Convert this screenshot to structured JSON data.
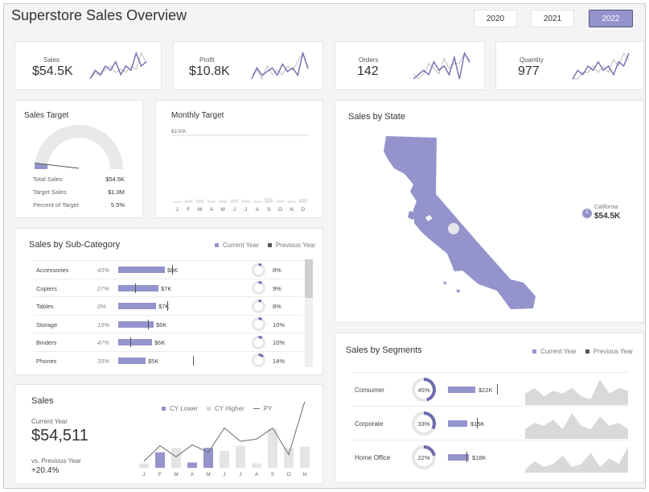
{
  "title": "Superstore Sales Overview",
  "years": [
    {
      "label": "2020",
      "active": false
    },
    {
      "label": "2021",
      "active": false
    },
    {
      "label": "2022",
      "active": true
    }
  ],
  "colors": {
    "accent": "#9493cc",
    "accent_dark": "#6e6cae",
    "light": "#e6e6e9",
    "ghost": "#c7c7cc"
  },
  "kpis": [
    {
      "label": "Sales",
      "value": "$54.5K",
      "cur": [
        3,
        5,
        4,
        6,
        5,
        7,
        4,
        6,
        5,
        9,
        6,
        7
      ],
      "prev": [
        2,
        4,
        3,
        5,
        6,
        4,
        5,
        4,
        6,
        5,
        10,
        7
      ]
    },
    {
      "label": "Profit",
      "value": "$10.8K",
      "cur": [
        3,
        6,
        4,
        5,
        6,
        4,
        7,
        5,
        6,
        4,
        10,
        6
      ],
      "prev": [
        4,
        5,
        3,
        6,
        4,
        5,
        4,
        6,
        5,
        7,
        9,
        5
      ]
    },
    {
      "label": "Orders",
      "value": "142",
      "cur": [
        3,
        4,
        5,
        4,
        7,
        5,
        6,
        4,
        8,
        3,
        9,
        7
      ],
      "prev": [
        4,
        3,
        4,
        6,
        5,
        4,
        7,
        5,
        6,
        6,
        8,
        6
      ]
    },
    {
      "label": "Quantity",
      "value": "977",
      "cur": [
        3,
        5,
        4,
        6,
        5,
        7,
        5,
        6,
        4,
        7,
        6,
        9
      ],
      "prev": [
        4,
        4,
        5,
        5,
        6,
        5,
        6,
        5,
        7,
        6,
        8,
        7
      ]
    }
  ],
  "sales_target": {
    "title": "Sales Target",
    "rows": [
      {
        "label": "Total Sales",
        "value": "$54.5K"
      },
      {
        "label": "Target Sales",
        "value": "$1.0M"
      },
      {
        "label": "Percent of Target",
        "value": "5.5%"
      }
    ],
    "percent": 0.055
  },
  "monthly_target": {
    "title": "Monthly Target",
    "target_label": "$100K",
    "months": [
      "J",
      "F",
      "M",
      "A",
      "M",
      "J",
      "J",
      "A",
      "S",
      "O",
      "N",
      "D"
    ],
    "values": [
      2.5,
      4,
      5,
      3.5,
      4,
      5.5,
      4.5,
      3,
      7,
      4,
      3.5,
      6
    ],
    "target": 100
  },
  "state": {
    "title": "Sales by State",
    "badge": "1",
    "name": "California",
    "value": "$54.5K"
  },
  "subcategory": {
    "title": "Sales by Sub-Category",
    "legend_current": "Current Year",
    "legend_previous": "Previous Year",
    "rows": [
      {
        "name": "Accessories",
        "growth": "43%",
        "value": "$8K",
        "bar": 58,
        "marker": 67,
        "share": "8%",
        "pct": 0.08
      },
      {
        "name": "Copiers",
        "growth": "27%",
        "value": "$7K",
        "bar": 50,
        "marker": 21,
        "share": "9%",
        "pct": 0.09
      },
      {
        "name": "Tables",
        "growth": "0%",
        "value": "$7K",
        "bar": 47,
        "marker": 61,
        "share": "8%",
        "pct": 0.08
      },
      {
        "name": "Storage",
        "growth": "19%",
        "value": "$6K",
        "bar": 44,
        "marker": 37,
        "share": "10%",
        "pct": 0.1
      },
      {
        "name": "Binders",
        "growth": "47%",
        "value": "$6K",
        "bar": 42,
        "marker": 15,
        "share": "10%",
        "pct": 0.1
      },
      {
        "name": "Phones",
        "growth": "33%",
        "value": "$5K",
        "bar": 34,
        "marker": 93,
        "share": "14%",
        "pct": 0.14
      }
    ]
  },
  "segments": {
    "title": "Sales by Segments",
    "legend_current": "Current Year",
    "legend_previous": "Previous Year",
    "rows": [
      {
        "name": "Consumer",
        "share": "45%",
        "pct": 0.45,
        "value": "$22K",
        "bar": 34,
        "marker": 61,
        "trend": [
          4,
          6,
          3,
          5,
          4,
          6,
          3,
          2,
          9,
          4,
          6,
          5
        ]
      },
      {
        "name": "Corporate",
        "share": "33%",
        "pct": 0.33,
        "value": "$15K",
        "bar": 24,
        "marker": 36,
        "trend": [
          3,
          5,
          4,
          6,
          3,
          8,
          4,
          3,
          7,
          4,
          5,
          3
        ]
      },
      {
        "name": "Home Office",
        "share": "22%",
        "pct": 0.22,
        "value": "$18K",
        "bar": 26,
        "marker": 23,
        "trend": [
          1,
          4,
          2,
          3,
          6,
          2,
          3,
          7,
          2,
          5,
          3,
          9
        ]
      }
    ]
  },
  "sales": {
    "title": "Sales",
    "current_label": "Current Year",
    "current_value": "$54,511",
    "vs_label": "vs. Previous Year",
    "vs_value": "+20.4%",
    "legend": [
      "CY Lower",
      "CY Higher",
      "PY"
    ]
  },
  "chart_data": {
    "type": "bar",
    "categories": [
      "J",
      "F",
      "M",
      "A",
      "M",
      "J",
      "J",
      "A",
      "S",
      "O",
      "N"
    ],
    "series": [
      {
        "name": "CY Lower",
        "values": [
          null,
          3.5,
          null,
          1.2,
          4.5,
          null,
          null,
          null,
          null,
          null,
          null
        ]
      },
      {
        "name": "CY Higher",
        "values": [
          1,
          null,
          4.5,
          null,
          null,
          3.8,
          5.0,
          1.0,
          8.8,
          4.5,
          4.8
        ]
      },
      {
        "name": "PY",
        "values": [
          1.5,
          5.0,
          2.5,
          5.2,
          3.5,
          9.0,
          6.0,
          6.5,
          9.0,
          3.0,
          15.0
        ]
      }
    ]
  }
}
